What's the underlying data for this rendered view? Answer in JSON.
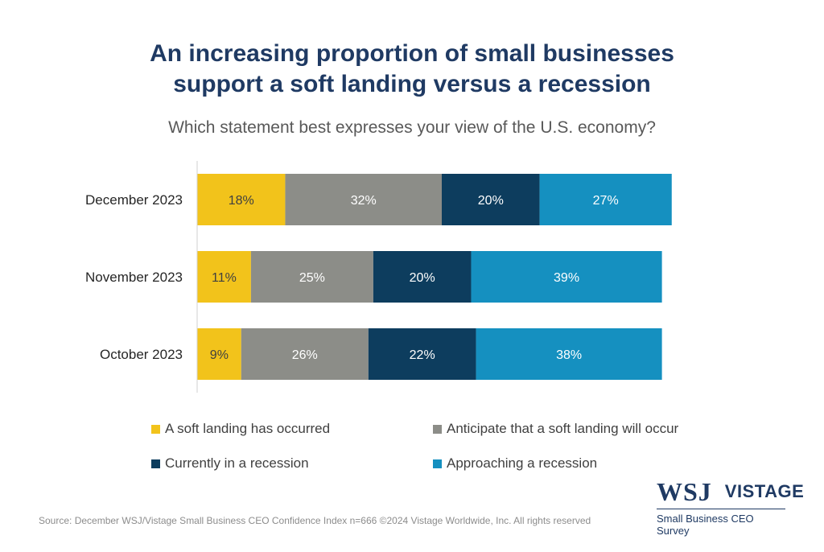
{
  "title_line1": "An increasing proportion of small businesses",
  "title_line2": "support a soft landing versus a recession",
  "subtitle": "Which statement best expresses your view of the U.S. economy?",
  "chart_data": {
    "type": "bar",
    "orientation": "horizontal",
    "stacked": true,
    "categories": [
      "December 2023",
      "November 2023",
      "October 2023"
    ],
    "series": [
      {
        "name": "A soft landing has occurred",
        "color": "#f2c31b",
        "values": [
          18,
          11,
          9
        ]
      },
      {
        "name": "Anticipate that a soft landing will occur",
        "color": "#8c8d88",
        "values": [
          32,
          25,
          26
        ]
      },
      {
        "name": "Currently in a recession",
        "color": "#0d3d5e",
        "values": [
          20,
          20,
          22
        ]
      },
      {
        "name": "Approaching a recession",
        "color": "#1590c0",
        "values": [
          27,
          39,
          38
        ]
      }
    ],
    "value_suffix": "%",
    "xlim": [
      0,
      100
    ],
    "grid": false,
    "legend_position": "bottom"
  },
  "source": "Source: December WSJ/Vistage Small Business CEO Confidence Index n=666 ©2024 Vistage Worldwide, Inc. All rights reserved",
  "logo": {
    "wsj": "WSJ",
    "vistage": "VISTAGE",
    "subtitle": "Small Business CEO Survey"
  }
}
